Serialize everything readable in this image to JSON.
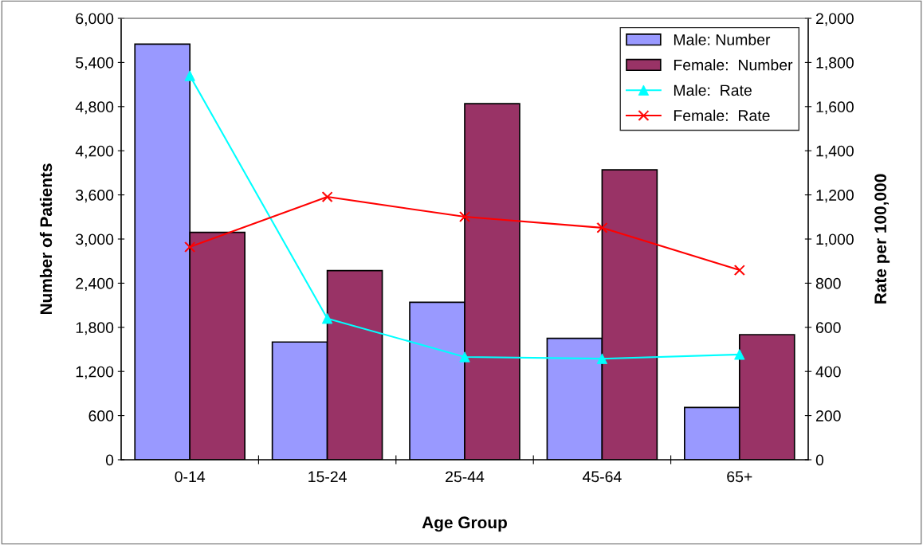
{
  "chart_data": {
    "type": "bar",
    "xlabel": "Age Group",
    "ylabel": "Number of Patients",
    "y2label": "Rate per 100,000",
    "categories": [
      "0-14",
      "15-24",
      "25-44",
      "45-64",
      "65+"
    ],
    "series": [
      {
        "name": "Male: Number",
        "color": "#9999ff",
        "values": [
          5650,
          1600,
          2140,
          1650,
          710
        ]
      },
      {
        "name": "Female:  Number",
        "color": "#993366",
        "values": [
          3090,
          2570,
          4840,
          3940,
          1700
        ]
      },
      {
        "name": "Male:  Rate",
        "type": "line",
        "axis": "y2",
        "marker": "triangle",
        "color": "#00ffff",
        "values": [
          1740,
          640,
          466,
          458,
          477
        ]
      },
      {
        "name": "Female:  Rate",
        "type": "line",
        "axis": "y2",
        "marker": "cross",
        "color": "#ff0000",
        "values": [
          964,
          1191,
          1101,
          1051,
          859
        ]
      }
    ],
    "ylim": [
      0,
      6000
    ],
    "yticks": [
      0,
      600,
      {
        "value": 1200,
        "label": "1,200"
      },
      {
        "value": 1800,
        "label": "1,800"
      },
      {
        "value": 2400,
        "label": "2,400"
      },
      {
        "value": 3000,
        "label": "3,000"
      },
      {
        "value": 3600,
        "label": "3,600"
      },
      {
        "value": 4200,
        "label": "4,200"
      },
      {
        "value": 4800,
        "label": "4,800"
      },
      {
        "value": 5400,
        "label": "5,400"
      },
      {
        "value": 6000,
        "label": "6,000"
      }
    ],
    "y2lim": [
      0,
      2000
    ],
    "y2ticks": [
      0,
      200,
      400,
      600,
      800,
      {
        "value": 1000,
        "label": "1,000"
      },
      {
        "value": 1200,
        "label": "1,200"
      },
      {
        "value": 1400,
        "label": "1,400"
      },
      {
        "value": 1600,
        "label": "1,600"
      },
      {
        "value": 1800,
        "label": "1,800"
      },
      {
        "value": 2000,
        "label": "2,000"
      }
    ],
    "grid": false,
    "legend": "top right"
  }
}
